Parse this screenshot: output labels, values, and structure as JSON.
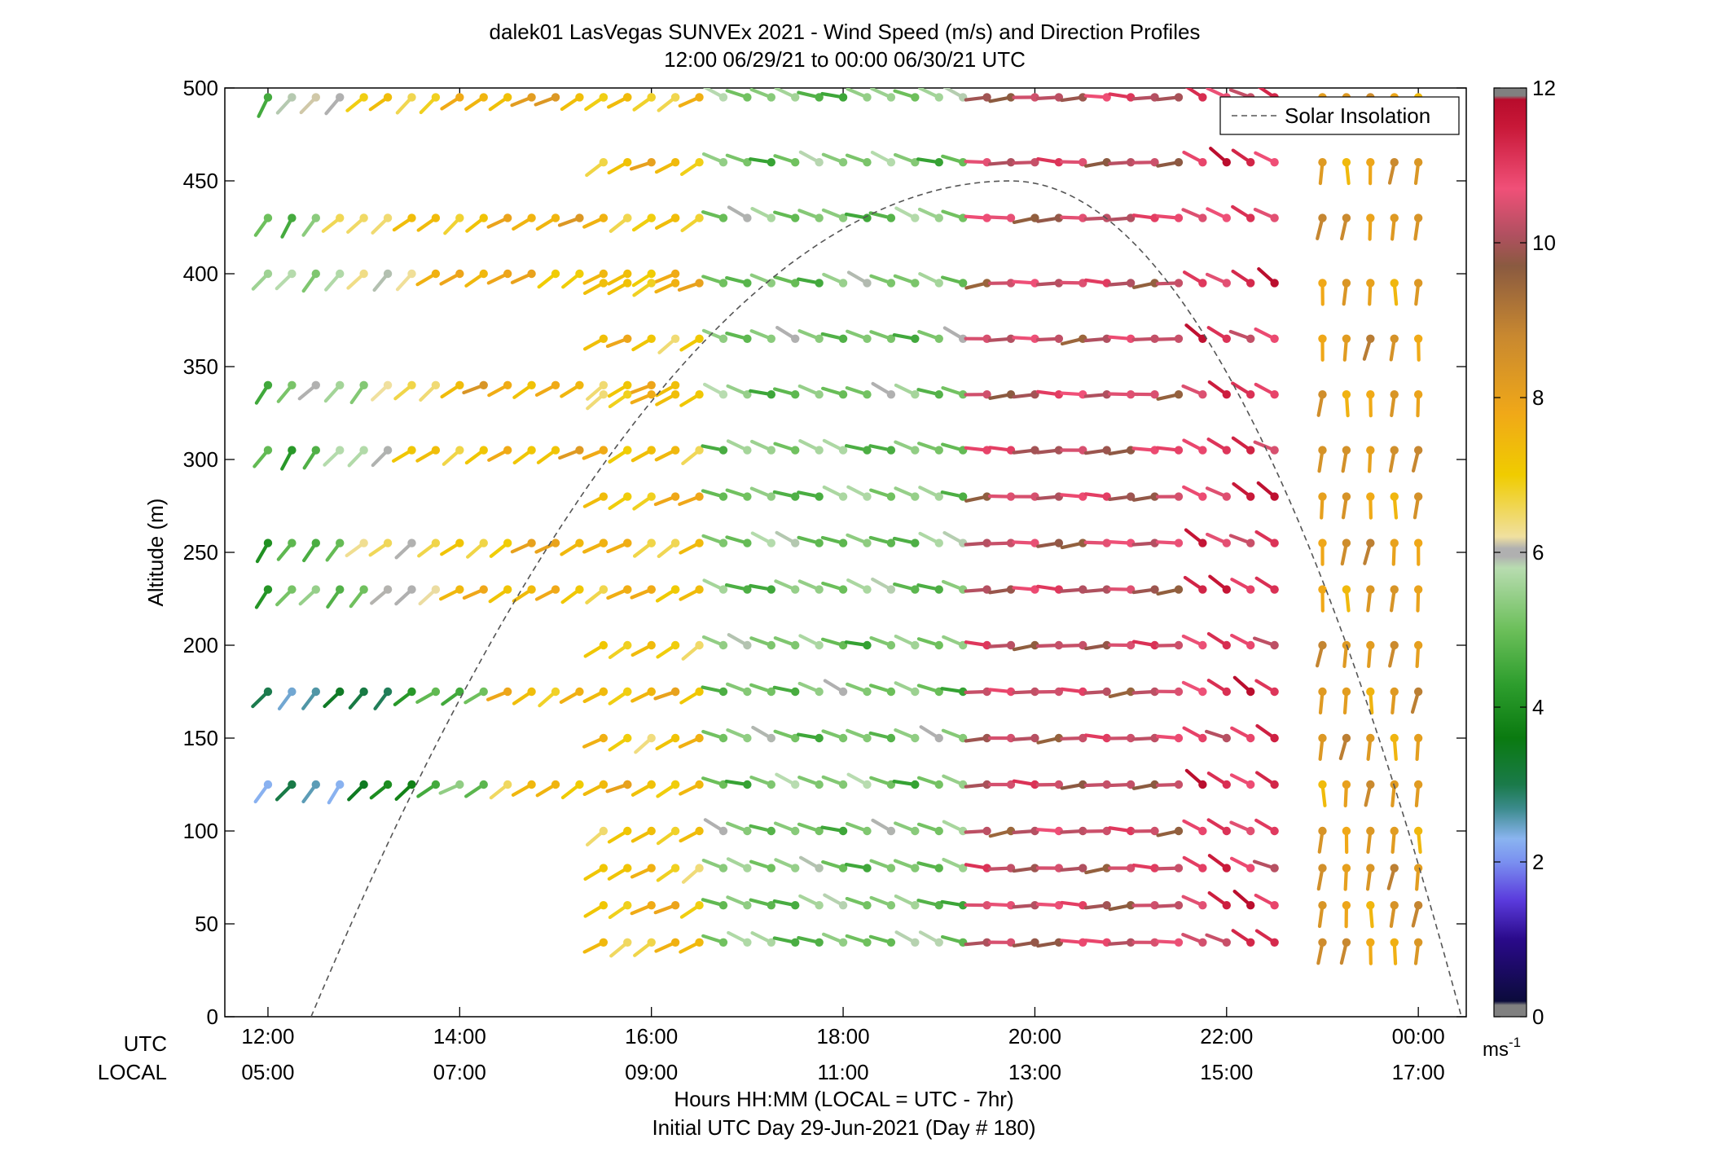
{
  "chart_data": {
    "type": "wind-barb-profile",
    "title": "dalek01 LasVegas SUNVEx 2021 - Wind Speed (m/s) and Direction Profiles",
    "subtitle": "12:00 06/29/21 to 00:00 06/30/21  UTC",
    "ylabel": "Altitude (m)",
    "ylim": [
      0,
      500
    ],
    "yticks": [
      0,
      50,
      100,
      150,
      200,
      250,
      300,
      350,
      400,
      450,
      500
    ],
    "xlim_hours": [
      11.55,
      24.5
    ],
    "xticks": [
      {
        "hour": 12,
        "utc": "12:00",
        "local": "05:00"
      },
      {
        "hour": 14,
        "utc": "14:00",
        "local": "07:00"
      },
      {
        "hour": 16,
        "utc": "16:00",
        "local": "09:00"
      },
      {
        "hour": 18,
        "utc": "18:00",
        "local": "11:00"
      },
      {
        "hour": 20,
        "utc": "20:00",
        "local": "13:00"
      },
      {
        "hour": 22,
        "utc": "22:00",
        "local": "15:00"
      },
      {
        "hour": 24,
        "utc": "00:00",
        "local": "17:00"
      }
    ],
    "xrow_label_utc": "UTC",
    "xrow_label_local": "LOCAL",
    "xlabel": "Hours HH:MM  (LOCAL = UTC - 7hr)",
    "xlabel2": "Initial UTC Day 29-Jun-2021 (Day # 180)",
    "legend": {
      "label": "Solar Insolation",
      "placement": "top-right"
    },
    "solar_insolation": {
      "start_hour": 12.45,
      "peak_hour": 19.75,
      "peak_altitude": 450,
      "end_hour": 24.45
    },
    "colorbar": {
      "range": [
        0,
        12
      ],
      "ticks": [
        0,
        2,
        4,
        6,
        8,
        10,
        12
      ],
      "unit_label": "ms",
      "unit_exponent": "-1",
      "stops": [
        {
          "v": 0.0,
          "c": "#808080"
        },
        {
          "v": 0.15,
          "c": "#808080"
        },
        {
          "v": 0.2,
          "c": "#0b0b3b"
        },
        {
          "v": 1.0,
          "c": "#2a0a8a"
        },
        {
          "v": 1.5,
          "c": "#5a3adc"
        },
        {
          "v": 2.0,
          "c": "#7a90f0"
        },
        {
          "v": 2.3,
          "c": "#8ab4f0"
        },
        {
          "v": 2.7,
          "c": "#3a8a8a"
        },
        {
          "v": 3.0,
          "c": "#1a7a4a"
        },
        {
          "v": 3.6,
          "c": "#0a7a10"
        },
        {
          "v": 4.3,
          "c": "#2e9e2e"
        },
        {
          "v": 5.0,
          "c": "#6cbf5a"
        },
        {
          "v": 5.8,
          "c": "#b8dcb0"
        },
        {
          "v": 5.95,
          "c": "#b0b0b0"
        },
        {
          "v": 6.05,
          "c": "#b0b0b0"
        },
        {
          "v": 6.2,
          "c": "#f0e0a0"
        },
        {
          "v": 7.0,
          "c": "#f0cc00"
        },
        {
          "v": 7.8,
          "c": "#f0a818"
        },
        {
          "v": 8.8,
          "c": "#c88830"
        },
        {
          "v": 9.7,
          "c": "#8a5a40"
        },
        {
          "v": 10.1,
          "c": "#b05060"
        },
        {
          "v": 10.7,
          "c": "#f05078"
        },
        {
          "v": 11.5,
          "c": "#c81838"
        },
        {
          "v": 11.85,
          "c": "#b80c2c"
        },
        {
          "v": 11.9,
          "c": "#808080"
        },
        {
          "v": 12.0,
          "c": "#808080"
        }
      ]
    },
    "altitudes": [
      40,
      60,
      80,
      100,
      125,
      150,
      175,
      200,
      230,
      255,
      280,
      305,
      335,
      365,
      395,
      430,
      460,
      495
    ],
    "segments": [
      {
        "name": "early",
        "start_hour": 12.0,
        "step_hour": 0.25,
        "count": 18,
        "altitudes": [
          125,
          175,
          230,
          255,
          305,
          340,
          400,
          430,
          495
        ]
      },
      {
        "name": "day",
        "start_hour": 15.5,
        "step_hour": 0.25,
        "count": 29,
        "altitudes": [
          40,
          60,
          80,
          100,
          125,
          150,
          175,
          200,
          230,
          255,
          280,
          305,
          335,
          365,
          395,
          430,
          460,
          495
        ]
      },
      {
        "name": "late",
        "start_hour": 23.0,
        "step_hour": 0.25,
        "count": 5,
        "altitudes": [
          40,
          60,
          80,
          100,
          125,
          150,
          175,
          200,
          230,
          255,
          280,
          305,
          335,
          365,
          395,
          430,
          460,
          495
        ]
      }
    ],
    "speed_profile": {
      "early_low": 3.5,
      "early_high": 7.6,
      "morning": 7.2,
      "midday": 5.2,
      "afternoon": 10.3,
      "evening": 11.0,
      "late": 8.2,
      "gap_hours": [
        22.5,
        22.8
      ]
    },
    "direction_profile_deg": {
      "early": 215,
      "morning": 240,
      "midday": 290,
      "afternoon": 268,
      "evening": 300,
      "late": 185
    }
  }
}
